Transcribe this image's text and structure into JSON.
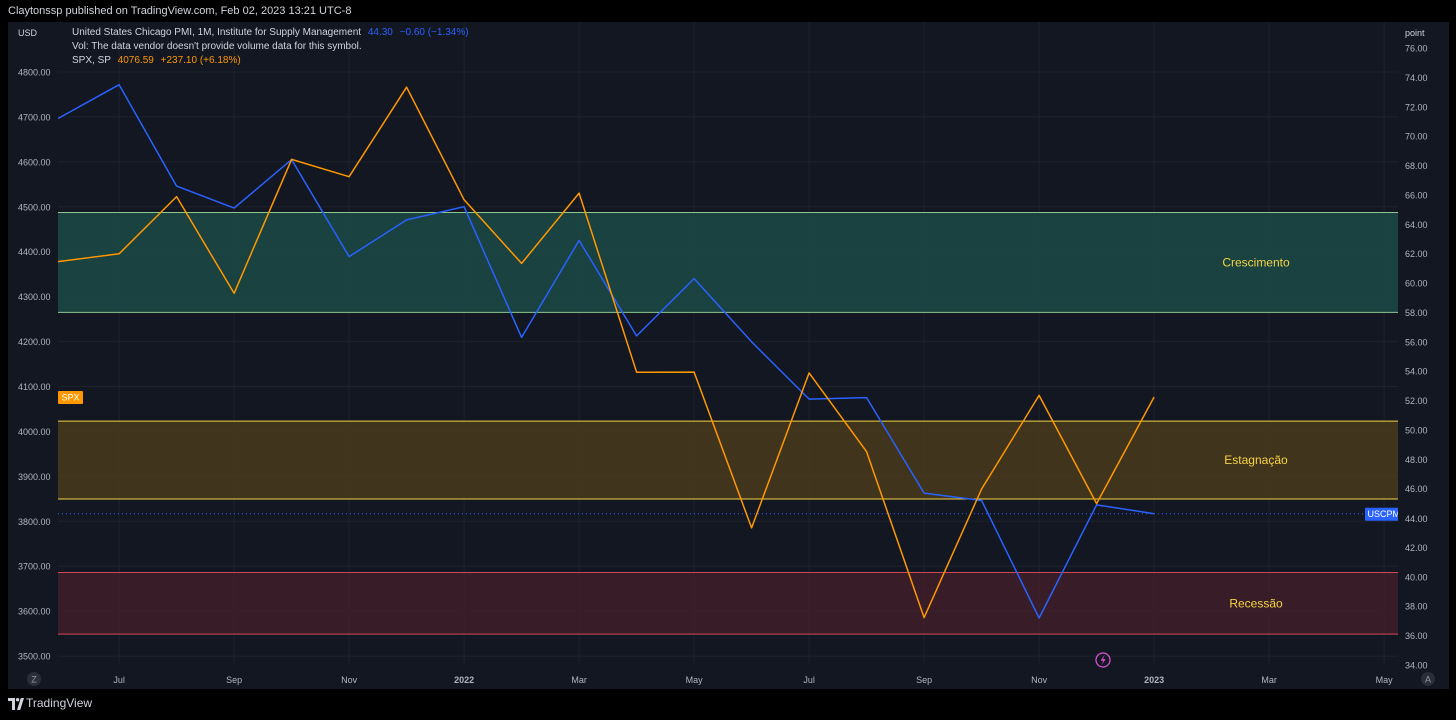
{
  "header": {
    "title": "Claytonssp published on TradingView.com, Feb 02, 2023 13:21 UTC-8"
  },
  "legend": {
    "pmi_name": "United States Chicago PMI, 1M, Institute for Supply Management",
    "pmi_value": "44.30",
    "pmi_change": "−0.60 (−1.34%)",
    "vol_text": "Vol: The data vendor doesn't provide volume data for this symbol.",
    "spx_name": "SPX, SP",
    "spx_value": "4076.59",
    "spx_change": "+237.10 (+6.18%)"
  },
  "axes": {
    "left_unit": "USD",
    "right_unit": "point",
    "z_button": "Z",
    "a_button": "A"
  },
  "badges": {
    "spx_price": "4076.59",
    "spx_label": "SPX",
    "pmi_label": "USCPMI",
    "pmi_price": "44.30",
    "pmi_hidden_tick": "44.00"
  },
  "zones": [
    {
      "label": "Crescimento",
      "top": 64.8,
      "bottom": 58.0,
      "fill": "#1b4a47",
      "edge": "#8bc98e"
    },
    {
      "label": "Estagnação",
      "top": 50.6,
      "bottom": 45.3,
      "fill": "#4a3a1c",
      "edge": "#f5d442"
    },
    {
      "label": "Recessão",
      "top": 40.3,
      "bottom": 36.1,
      "fill": "#3f1f2a",
      "edge": "#d04858"
    }
  ],
  "footer": {
    "brand": "TradingView"
  },
  "colors": {
    "pmi": "#2962ff",
    "spx": "#ff9800",
    "background": "#131722",
    "zone_text": "#f5d442"
  },
  "chart_data": {
    "type": "line",
    "x": [
      "2021-06",
      "2021-07",
      "2021-08",
      "2021-09",
      "2021-10",
      "2021-11",
      "2021-12",
      "2022-01",
      "2022-02",
      "2022-03",
      "2022-04",
      "2022-05",
      "2022-06",
      "2022-07",
      "2022-08",
      "2022-09",
      "2022-10",
      "2022-11",
      "2022-12",
      "2023-01"
    ],
    "x_tick_labels": [
      "Jul",
      "Sep",
      "Nov",
      "2022",
      "Mar",
      "May",
      "Jul",
      "Sep",
      "Nov",
      "2023",
      "Mar",
      "May"
    ],
    "series": [
      {
        "name": "USCPMI",
        "axis": "right",
        "color": "#2962ff",
        "values": [
          null,
          73.5,
          66.6,
          65.1,
          68.4,
          61.8,
          64.3,
          65.2,
          56.3,
          62.9,
          56.4,
          60.3,
          56.0,
          52.1,
          52.2,
          45.7,
          45.2,
          37.2,
          44.9,
          44.3
        ]
      },
      {
        "name": "SPX",
        "axis": "left",
        "color": "#ff9800",
        "values": [
          null,
          4395.26,
          4522.68,
          4307.54,
          4605.38,
          4567.0,
          4766.18,
          4515.55,
          4373.94,
          4530.41,
          4131.93,
          4132.15,
          3785.38,
          4130.29,
          3955.0,
          3585.62,
          3871.98,
          4080.11,
          3839.5,
          4076.59
        ]
      }
    ],
    "left_axis": {
      "ticks": [
        4800.0,
        4700.0,
        4600.0,
        4500.0,
        4400.0,
        4300.0,
        4200.0,
        4100.0,
        4000.0,
        3900.0,
        3800.0,
        3700.0,
        3600.0,
        3500.0
      ]
    },
    "right_axis": {
      "ticks": [
        76.0,
        74.0,
        72.0,
        70.0,
        68.0,
        66.0,
        64.0,
        62.0,
        60.0,
        58.0,
        56.0,
        54.0,
        52.0,
        50.0,
        48.0,
        46.0,
        42.0,
        40.0,
        38.0,
        36.0,
        34.0
      ]
    }
  }
}
